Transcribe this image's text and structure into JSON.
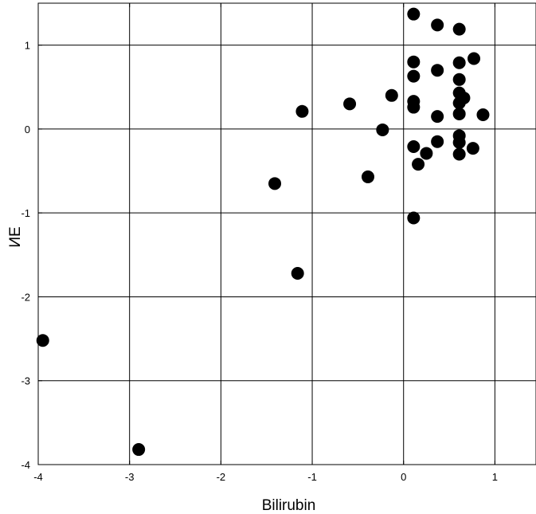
{
  "chart_data": {
    "type": "scatter",
    "xlabel": "Bilirubin",
    "ylabel": "ИE",
    "xlim": [
      -4,
      1.45
    ],
    "ylim": [
      -4,
      1.5
    ],
    "grid": true,
    "x_ticks": [
      -4,
      -3,
      -2,
      -1,
      0,
      1
    ],
    "y_ticks": [
      -4,
      -3,
      -2,
      -1,
      0,
      1
    ],
    "marker_color": "#000000",
    "points": [
      {
        "x": -3.95,
        "y": -2.52
      },
      {
        "x": -2.9,
        "y": -3.82
      },
      {
        "x": -1.41,
        "y": -0.65
      },
      {
        "x": -1.16,
        "y": -1.72
      },
      {
        "x": -1.11,
        "y": 0.21
      },
      {
        "x": -0.59,
        "y": 0.3
      },
      {
        "x": -0.39,
        "y": -0.57
      },
      {
        "x": -0.23,
        "y": -0.01
      },
      {
        "x": -0.13,
        "y": 0.4
      },
      {
        "x": 0.11,
        "y": 1.37
      },
      {
        "x": 0.11,
        "y": 0.8
      },
      {
        "x": 0.11,
        "y": 0.63
      },
      {
        "x": 0.11,
        "y": 0.33
      },
      {
        "x": 0.11,
        "y": 0.26
      },
      {
        "x": 0.11,
        "y": -0.21
      },
      {
        "x": 0.11,
        "y": -1.06
      },
      {
        "x": 0.16,
        "y": -0.42
      },
      {
        "x": 0.25,
        "y": -0.29
      },
      {
        "x": 0.37,
        "y": 1.24
      },
      {
        "x": 0.37,
        "y": 0.7
      },
      {
        "x": 0.37,
        "y": 0.15
      },
      {
        "x": 0.37,
        "y": -0.15
      },
      {
        "x": 0.61,
        "y": 1.19
      },
      {
        "x": 0.61,
        "y": 0.79
      },
      {
        "x": 0.61,
        "y": 0.59
      },
      {
        "x": 0.61,
        "y": 0.43
      },
      {
        "x": 0.61,
        "y": 0.31
      },
      {
        "x": 0.61,
        "y": 0.18
      },
      {
        "x": 0.61,
        "y": -0.08
      },
      {
        "x": 0.61,
        "y": -0.16
      },
      {
        "x": 0.61,
        "y": -0.3
      },
      {
        "x": 0.66,
        "y": 0.37
      },
      {
        "x": 0.76,
        "y": -0.23
      },
      {
        "x": 0.77,
        "y": 0.84
      },
      {
        "x": 0.87,
        "y": 0.17
      }
    ]
  }
}
